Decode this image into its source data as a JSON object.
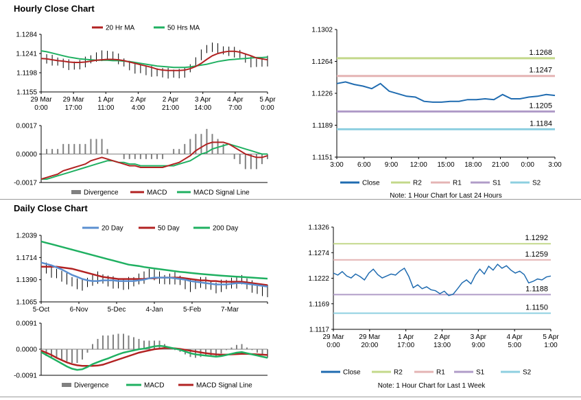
{
  "titles": {
    "hourly": "Hourly Close Chart",
    "daily": "Daily Close Chart"
  },
  "colors": {
    "ma20": "#b22222",
    "ma50": "#1fb061",
    "divergence": "#808080",
    "close": "#1f6bb0",
    "daily20": "#5b8fd0",
    "r2": "#c3d88a",
    "r1": "#e4b4b4",
    "s1": "#b09cc8",
    "s2": "#8dcfe0",
    "price": "#000000"
  },
  "chart_data": [
    {
      "id": "hourly_price",
      "type": "line",
      "legend": [
        "20 Hr MA",
        "50 Hrs MA"
      ],
      "ylim": [
        1.1155,
        1.1284
      ],
      "yticks": [
        "1.1284",
        "1.1241",
        "1.1198",
        "1.1155"
      ],
      "xticks": [
        [
          "29 Mar",
          "0:00"
        ],
        [
          "29 Mar",
          "17:00"
        ],
        [
          "1 Apr",
          "11:00"
        ],
        [
          "2 Apr",
          "4:00"
        ],
        [
          "2 Apr",
          "21:00"
        ],
        [
          "3 Apr",
          "14:00"
        ],
        [
          "4 Apr",
          "7:00"
        ],
        [
          "5 Apr",
          "0:00"
        ]
      ],
      "close": [
        1.1232,
        1.1229,
        1.1226,
        1.1223,
        1.1219,
        1.1216,
        1.1214,
        1.1216,
        1.1222,
        1.1228,
        1.1233,
        1.1236,
        1.1238,
        1.1235,
        1.1229,
        1.1221,
        1.1214,
        1.1208,
        1.1206,
        1.1203,
        1.1201,
        1.1199,
        1.1198,
        1.1197,
        1.1196,
        1.1196,
        1.1199,
        1.1208,
        1.1222,
        1.1238,
        1.1251,
        1.1255,
        1.1252,
        1.1248,
        1.1246,
        1.1244,
        1.124,
        1.1231,
        1.1222,
        1.122,
        1.1222,
        1.1224
      ],
      "ma20": [
        1.123,
        1.1229,
        1.1227,
        1.1225,
        1.1224,
        1.1222,
        1.1221,
        1.1221,
        1.1222,
        1.1224,
        1.1226,
        1.1227,
        1.1228,
        1.1228,
        1.1227,
        1.1225,
        1.1222,
        1.1219,
        1.1216,
        1.1213,
        1.121,
        1.1206,
        1.1204,
        1.1203,
        1.1203,
        1.1203,
        1.1204,
        1.1207,
        1.1212,
        1.1219,
        1.1228,
        1.1236,
        1.1241,
        1.1244,
        1.1246,
        1.1246,
        1.1244,
        1.124,
        1.1236,
        1.1231,
        1.1229,
        1.1227
      ],
      "ma50": [
        1.1247,
        1.1245,
        1.1242,
        1.1239,
        1.1236,
        1.1233,
        1.1231,
        1.1229,
        1.1228,
        1.1227,
        1.1226,
        1.1226,
        1.1226,
        1.1225,
        1.1225,
        1.1224,
        1.1223,
        1.1221,
        1.1219,
        1.1217,
        1.1215,
        1.1213,
        1.1212,
        1.1211,
        1.121,
        1.121,
        1.121,
        1.1211,
        1.1213,
        1.1215,
        1.1217,
        1.122,
        1.1223,
        1.1225,
        1.1227,
        1.1228,
        1.1229,
        1.123,
        1.1231,
        1.1232,
        1.1232,
        1.1233
      ]
    },
    {
      "id": "hourly_macd",
      "type": "bar",
      "legend": [
        "Divergence",
        "MACD",
        "MACD Signal Line"
      ],
      "ylim": [
        -0.0017,
        0.0017
      ],
      "yticks": [
        "0.0017",
        "0.0000",
        "-0.0017"
      ],
      "macd": [
        -0.0015,
        -0.0014,
        -0.0013,
        -0.0012,
        -0.001,
        -0.0009,
        -0.0008,
        -0.0007,
        -0.0006,
        -0.0004,
        -0.0003,
        -0.0002,
        -0.0003,
        -0.0004,
        -0.0005,
        -0.0006,
        -0.0007,
        -0.0007,
        -0.0008,
        -0.0008,
        -0.0008,
        -0.0008,
        -0.0008,
        -0.0007,
        -0.0006,
        -0.0005,
        -0.0003,
        -0.0001,
        0.0002,
        0.0004,
        0.0006,
        0.0007,
        0.0007,
        0.0007,
        0.0006,
        0.0004,
        0.0002,
        0.0,
        -0.0001,
        -0.0002,
        -0.0002,
        -0.0001
      ],
      "signal": [
        -0.0015,
        -0.0015,
        -0.0014,
        -0.0013,
        -0.0012,
        -0.0011,
        -0.001,
        -0.0009,
        -0.0008,
        -0.0007,
        -0.0006,
        -0.0005,
        -0.0004,
        -0.0004,
        -0.0005,
        -0.0005,
        -0.0006,
        -0.0006,
        -0.0007,
        -0.0007,
        -0.0007,
        -0.0007,
        -0.0007,
        -0.0007,
        -0.0007,
        -0.0006,
        -0.0005,
        -0.0004,
        -0.0002,
        0.0,
        0.0001,
        0.0003,
        0.0004,
        0.0005,
        0.0006,
        0.0005,
        0.0004,
        0.0003,
        0.0002,
        0.0001,
        0.0,
        0.0
      ]
    },
    {
      "id": "hourly_pivots",
      "type": "line",
      "legend": [
        "Close",
        "R2",
        "R1",
        "S1",
        "S2"
      ],
      "note": "Note: 1 Hour Chart for Last 24 Hours",
      "ylim": [
        1.1151,
        1.1302
      ],
      "yticks": [
        "1.1302",
        "1.1264",
        "1.1226",
        "1.1189",
        "1.1151"
      ],
      "xticks": [
        "3:00",
        "6:00",
        "9:00",
        "12:00",
        "15:00",
        "18:00",
        "21:00",
        "0:00",
        "3:00"
      ],
      "levels": {
        "R2": "1.1268",
        "R1": "1.1247",
        "S1": "1.1205",
        "S2": "1.1184"
      },
      "level_values": {
        "R2": 1.1268,
        "R1": 1.1247,
        "S1": 1.1205,
        "S2": 1.1184
      },
      "close": [
        1.1238,
        1.124,
        1.1237,
        1.1235,
        1.1232,
        1.1238,
        1.1229,
        1.1226,
        1.1223,
        1.1222,
        1.1217,
        1.1216,
        1.1216,
        1.1217,
        1.1217,
        1.1219,
        1.1219,
        1.122,
        1.1219,
        1.1225,
        1.122,
        1.122,
        1.1222,
        1.1223,
        1.1225,
        1.1224
      ]
    },
    {
      "id": "daily_price",
      "type": "line",
      "legend": [
        "20 Day",
        "50 Day",
        "200 Day"
      ],
      "ylim": [
        1.1065,
        1.2039
      ],
      "yticks": [
        "1.2039",
        "1.1714",
        "1.1390",
        "1.1065"
      ],
      "xticks": [
        "5-Oct",
        "6-Nov",
        "5-Dec",
        "4-Jan",
        "5-Feb",
        "7-Mar"
      ],
      "close": [
        1.158,
        1.156,
        1.151,
        1.148,
        1.144,
        1.141,
        1.136,
        1.133,
        1.132,
        1.135,
        1.138,
        1.142,
        1.14,
        1.137,
        1.135,
        1.133,
        1.132,
        1.134,
        1.136,
        1.14,
        1.142,
        1.148,
        1.146,
        1.142,
        1.139,
        1.14,
        1.141,
        1.138,
        1.133,
        1.13,
        1.132,
        1.135,
        1.134,
        1.131,
        1.127,
        1.13,
        1.132,
        1.134,
        1.135,
        1.139,
        1.133,
        1.129,
        1.125,
        1.123,
        1.1225
      ],
      "d20": [
        1.164,
        1.162,
        1.16,
        1.157,
        1.154,
        1.15,
        1.146,
        1.143,
        1.14,
        1.138,
        1.137,
        1.137,
        1.138,
        1.138,
        1.138,
        1.137,
        1.137,
        1.137,
        1.137,
        1.138,
        1.139,
        1.141,
        1.142,
        1.142,
        1.142,
        1.142,
        1.141,
        1.14,
        1.139,
        1.137,
        1.136,
        1.135,
        1.134,
        1.133,
        1.132,
        1.132,
        1.132,
        1.133,
        1.134,
        1.134,
        1.133,
        1.132,
        1.131,
        1.13,
        1.129
      ],
      "d50": [
        1.158,
        1.158,
        1.158,
        1.158,
        1.157,
        1.156,
        1.155,
        1.153,
        1.151,
        1.149,
        1.147,
        1.145,
        1.143,
        1.142,
        1.141,
        1.14,
        1.14,
        1.14,
        1.14,
        1.14,
        1.14,
        1.141,
        1.141,
        1.142,
        1.142,
        1.142,
        1.142,
        1.142,
        1.141,
        1.14,
        1.139,
        1.138,
        1.138,
        1.137,
        1.137,
        1.136,
        1.136,
        1.136,
        1.136,
        1.136,
        1.135,
        1.134,
        1.133,
        1.132,
        1.131
      ],
      "d200": [
        1.195,
        1.193,
        1.191,
        1.189,
        1.187,
        1.185,
        1.183,
        1.181,
        1.179,
        1.177,
        1.175,
        1.173,
        1.171,
        1.169,
        1.167,
        1.165,
        1.163,
        1.161,
        1.16,
        1.159,
        1.1575,
        1.1565,
        1.1555,
        1.1545,
        1.1535,
        1.1525,
        1.1515,
        1.1505,
        1.1498,
        1.149,
        1.1482,
        1.1475,
        1.1468,
        1.1462,
        1.1456,
        1.145,
        1.1445,
        1.144,
        1.1435,
        1.143,
        1.1425,
        1.142,
        1.1415,
        1.141,
        1.1405
      ]
    },
    {
      "id": "daily_macd",
      "type": "bar",
      "legend": [
        "Divergence",
        "MACD",
        "MACD Signal Line"
      ],
      "ylim": [
        -0.0091,
        0.0091
      ],
      "yticks": [
        "0.0091",
        "0.0000",
        "-0.0091"
      ],
      "macd": [
        -0.001,
        -0.002,
        -0.003,
        -0.004,
        -0.005,
        -0.006,
        -0.0068,
        -0.0072,
        -0.007,
        -0.0062,
        -0.0052,
        -0.0045,
        -0.0038,
        -0.0032,
        -0.0025,
        -0.0018,
        -0.0012,
        -0.0008,
        -0.0004,
        0.0,
        0.0002,
        0.0006,
        0.001,
        0.0012,
        0.001,
        0.0006,
        0.0002,
        -0.0002,
        -0.0008,
        -0.0014,
        -0.0018,
        -0.002,
        -0.0022,
        -0.0024,
        -0.0026,
        -0.0024,
        -0.002,
        -0.0016,
        -0.0012,
        -0.001,
        -0.0014,
        -0.0018,
        -0.0022,
        -0.0026,
        -0.003
      ],
      "signal": [
        -0.0005,
        -0.0012,
        -0.002,
        -0.003,
        -0.0038,
        -0.0046,
        -0.0052,
        -0.0056,
        -0.0058,
        -0.0058,
        -0.0058,
        -0.0057,
        -0.0054,
        -0.0048,
        -0.0042,
        -0.0036,
        -0.003,
        -0.0024,
        -0.0018,
        -0.0012,
        -0.0008,
        -0.0004,
        0.0,
        0.0002,
        0.0004,
        0.0004,
        0.0003,
        0.0001,
        -0.0002,
        -0.0005,
        -0.0008,
        -0.0011,
        -0.0014,
        -0.0016,
        -0.0018,
        -0.0019,
        -0.0019,
        -0.0018,
        -0.0017,
        -0.0016,
        -0.0016,
        -0.0017,
        -0.0018,
        -0.0019,
        -0.002
      ]
    },
    {
      "id": "weekly_pivots",
      "type": "line",
      "legend": [
        "Close",
        "R2",
        "R1",
        "S1",
        "S2"
      ],
      "note": "Note: 1 Hour Chart for Last 1 Week",
      "ylim": [
        1.1117,
        1.1326
      ],
      "yticks": [
        "1.1326",
        "1.1274",
        "1.1222",
        "1.1169",
        "1.1117"
      ],
      "xticks": [
        [
          "29 Mar",
          "0:00"
        ],
        [
          "29 Mar",
          "20:00"
        ],
        [
          "1 Apr",
          "17:00"
        ],
        [
          "2 Apr",
          "13:00"
        ],
        [
          "3 Apr",
          "9:00"
        ],
        [
          "4 Apr",
          "5:00"
        ],
        [
          "5 Apr",
          "1:00"
        ]
      ],
      "levels": {
        "R2": "1.1292",
        "R1": "1.1259",
        "S1": "1.1188",
        "S2": "1.1150"
      },
      "level_values": {
        "R2": 1.1292,
        "R1": 1.1259,
        "S1": 1.1188,
        "S2": 1.115
      },
      "close": [
        1.1232,
        1.1228,
        1.1235,
        1.1226,
        1.1222,
        1.123,
        1.1225,
        1.1218,
        1.1232,
        1.124,
        1.1229,
        1.1222,
        1.1226,
        1.123,
        1.1228,
        1.1236,
        1.1242,
        1.1225,
        1.1202,
        1.1208,
        1.12,
        1.1204,
        1.1198,
        1.1196,
        1.119,
        1.1195,
        1.1186,
        1.1189,
        1.12,
        1.1212,
        1.1218,
        1.121,
        1.1228,
        1.124,
        1.123,
        1.1246,
        1.1238,
        1.125,
        1.1242,
        1.1247,
        1.1238,
        1.1232,
        1.1236,
        1.1229,
        1.1212,
        1.1215,
        1.122,
        1.1218,
        1.1224,
        1.1226
      ]
    }
  ]
}
